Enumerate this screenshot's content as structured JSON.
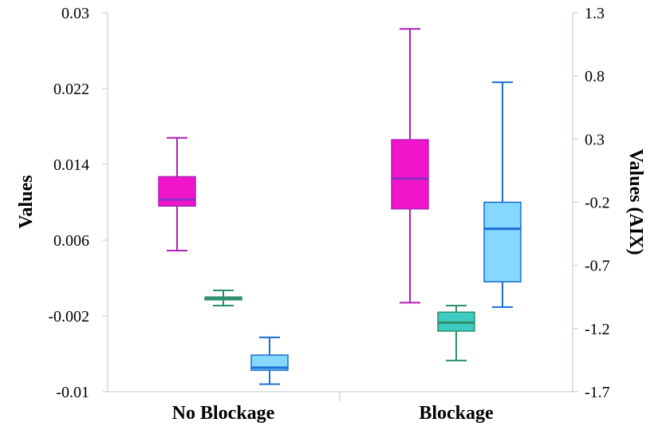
{
  "chart_data": {
    "type": "boxplot",
    "categories": [
      "No Blockage",
      "Blockage"
    ],
    "ylabel": "Values",
    "ylabel_right": "Values (AIX)",
    "ylim": [
      -0.01,
      0.03
    ],
    "yticks": [
      "0.03",
      "0.022",
      "0.014",
      "0.006",
      "-0.002",
      "-0.01"
    ],
    "ylim_right": [
      -1.7,
      1.3
    ],
    "yticks_right": [
      "1.3",
      "0.8",
      "0.3",
      "-0.2",
      "-0.7",
      "-1.2",
      "-1.7"
    ],
    "series": [
      {
        "axis": "left",
        "fill": "#F015C8",
        "stroke": "#B01EB8",
        "median_color": "#8E2BC9",
        "boxes": [
          {
            "min": 0.0049,
            "q1": 0.0096,
            "median": 0.0103,
            "q3": 0.0127,
            "max": 0.0168
          },
          {
            "min": -0.0006,
            "q1": 0.0093,
            "median": 0.0125,
            "q3": 0.0166,
            "max": 0.0283
          }
        ]
      },
      {
        "axis": "left",
        "fill": "#3ECCC0",
        "stroke": "#2E8F6A",
        "median_color": "#2E8F6A",
        "boxes": [
          {
            "min": -0.0009,
            "q1": -0.0003,
            "median": -0.0001,
            "q3": 0.0,
            "max": 0.0007
          },
          {
            "min": -0.0067,
            "q1": -0.0036,
            "median": -0.0027,
            "q3": -0.0016,
            "max": -0.0009
          }
        ]
      },
      {
        "axis": "right",
        "fill": "#85D8FF",
        "stroke": "#1A6ED0",
        "median_color": "#1A6ED0",
        "boxes": [
          {
            "min": -1.64,
            "q1": -1.53,
            "median": -1.51,
            "q3": -1.41,
            "max": -1.27
          },
          {
            "min": -1.03,
            "q1": -0.83,
            "median": -0.41,
            "q3": -0.2,
            "max": 0.75
          }
        ]
      }
    ]
  }
}
